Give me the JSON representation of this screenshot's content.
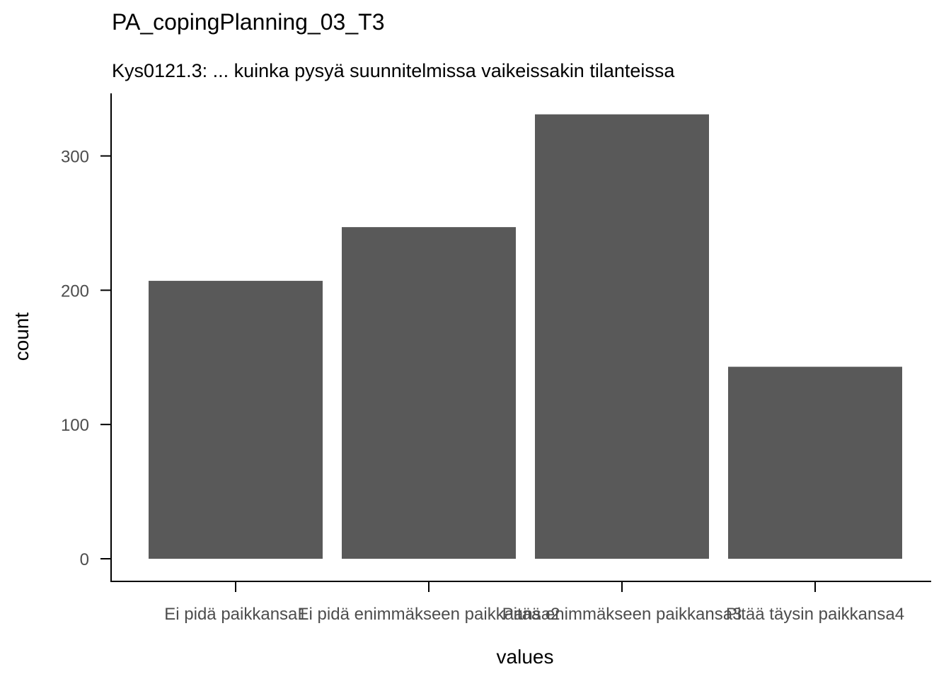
{
  "chart_data": {
    "type": "bar",
    "title": "PA_copingPlanning_03_T3",
    "subtitle": "Kys0121.3: ... kuinka pysyä suunnitelmissa vaikeissakin tilanteissa",
    "xlabel": "values",
    "ylabel": "count",
    "categories": [
      "Ei pidä paikkansa1",
      "Ei pidä enimmäkseen paikkaansa2",
      "Pitää enimmäkseen paikkansa3",
      "Pitää täysin paikkansa4"
    ],
    "values": [
      207,
      247,
      331,
      143
    ],
    "ylim": [
      0,
      349
    ],
    "yticks": [
      0,
      100,
      200,
      300
    ],
    "bar_color": "#595959",
    "grid": false
  }
}
